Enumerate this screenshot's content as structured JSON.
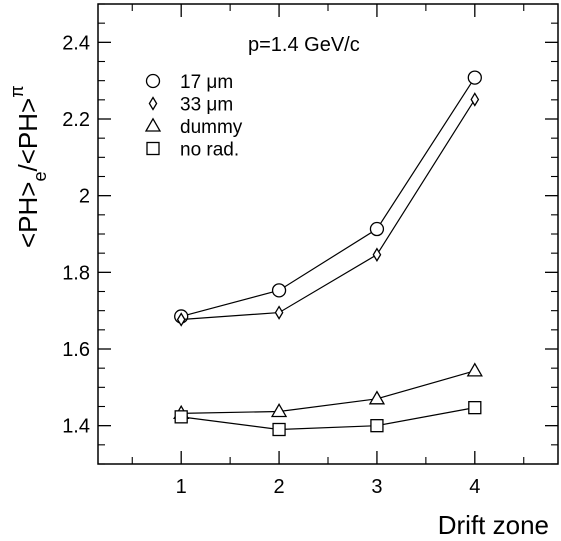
{
  "chart_data": {
    "type": "line",
    "title": "",
    "annotation": "p=1.4 GeV/c",
    "xlabel": "Drift zone",
    "ylabel_parts": {
      "lt1": "<PH>",
      "sub_e": "e",
      "slash_lt": "/<PH>",
      "sub_pi": "π"
    },
    "x": [
      1,
      2,
      3,
      4
    ],
    "xlim": [
      0.15,
      4.85
    ],
    "ylim": [
      1.3,
      2.5
    ],
    "xticks": [
      "1",
      "2",
      "3",
      "4"
    ],
    "yticks": [
      {
        "value": 1.4,
        "label": "1.4"
      },
      {
        "value": 1.6,
        "label": "1.6"
      },
      {
        "value": 1.8,
        "label": "1.8"
      },
      {
        "value": 2.0,
        "label": "2"
      },
      {
        "value": 2.2,
        "label": "2.2"
      },
      {
        "value": 2.4,
        "label": "2.4"
      }
    ],
    "series": [
      {
        "name": "17 μm",
        "marker": "circle",
        "values": [
          1.685,
          1.753,
          1.913,
          2.308
        ]
      },
      {
        "name": "33 μm",
        "marker": "diamond",
        "values": [
          1.677,
          1.695,
          1.846,
          2.251
        ]
      },
      {
        "name": "dummy",
        "marker": "triangle",
        "values": [
          1.432,
          1.437,
          1.47,
          1.543
        ]
      },
      {
        "name": "no rad.",
        "marker": "square",
        "values": [
          1.423,
          1.39,
          1.4,
          1.447
        ]
      }
    ],
    "legend_position": "top-left",
    "grid": false
  }
}
